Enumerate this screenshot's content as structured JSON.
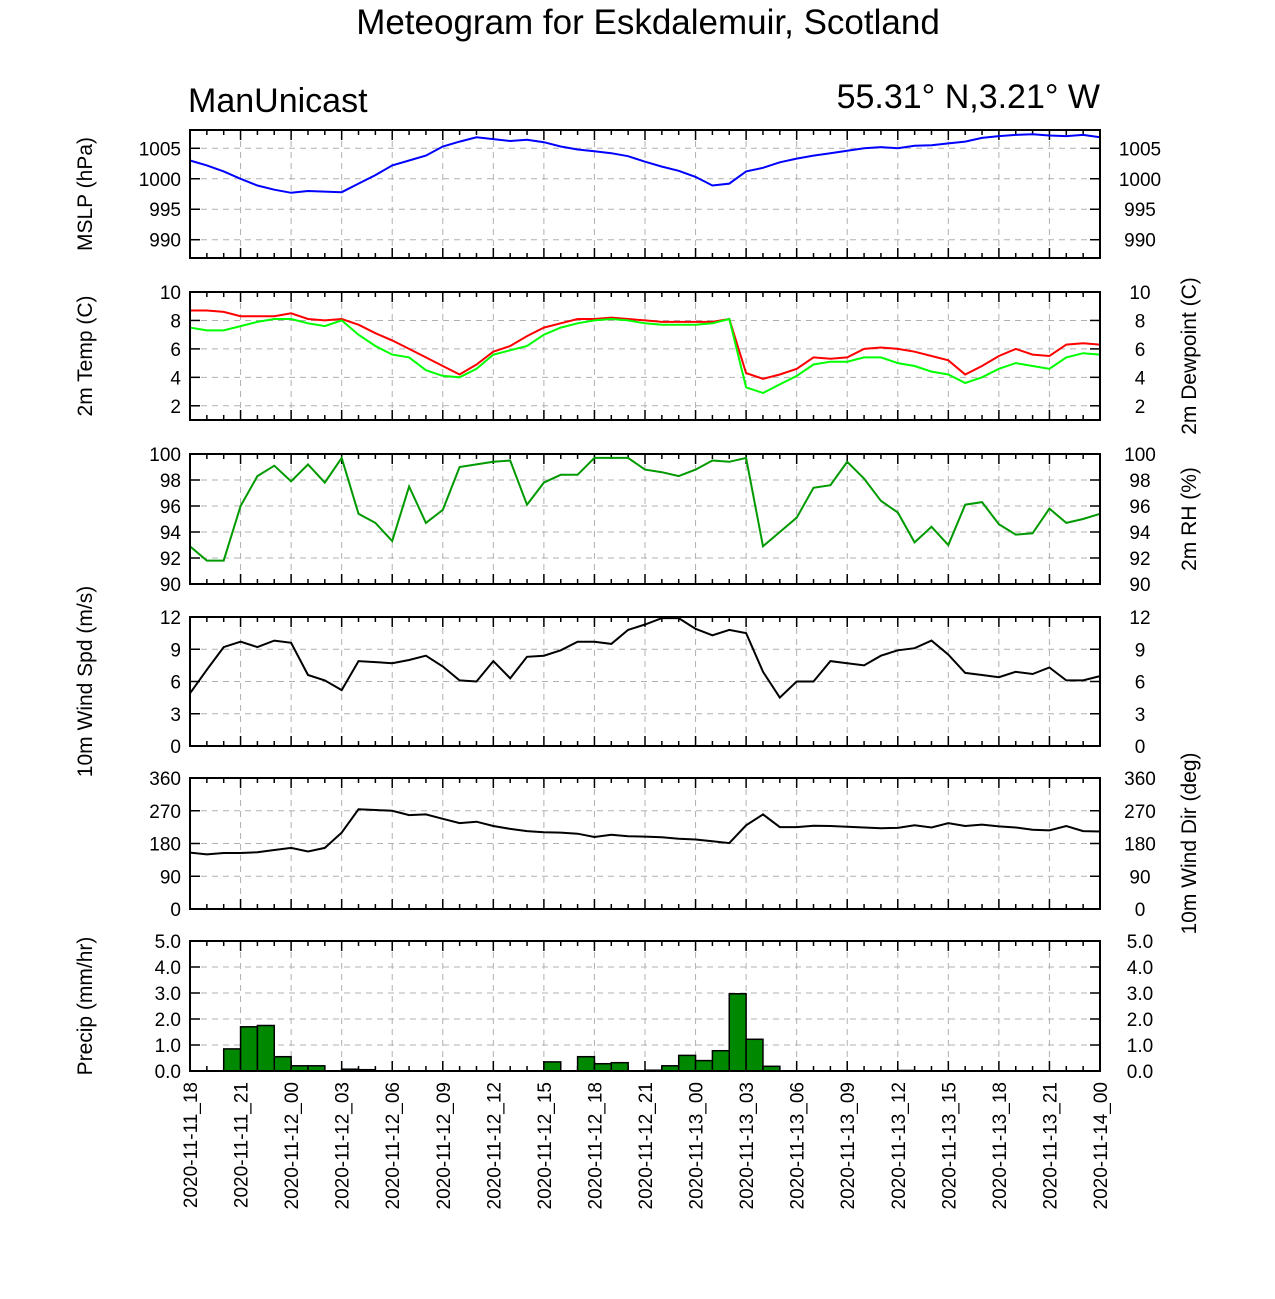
{
  "title": "Meteogram for Eskdalemuir, Scotland",
  "model": "ManUnicast",
  "location": "55.31° N,3.21° W",
  "x_labels": [
    "2020-11-11_18",
    "2020-11-11_21",
    "2020-11-12_00",
    "2020-11-12_03",
    "2020-11-12_06",
    "2020-11-12_09",
    "2020-11-12_12",
    "2020-11-12_15",
    "2020-11-12_18",
    "2020-11-12_21",
    "2020-11-13_00",
    "2020-11-13_03",
    "2020-11-13_06",
    "2020-11-13_09",
    "2020-11-13_12",
    "2020-11-13_15",
    "2020-11-13_18",
    "2020-11-13_21",
    "2020-11-14_00"
  ],
  "chart_data": [
    {
      "type": "line",
      "ylabel": "MSLP (hPa)",
      "ylim": [
        987,
        1008
      ],
      "yticks": [
        "990",
        "995",
        "1000",
        "1005"
      ],
      "ytick_values": [
        990,
        995,
        1000,
        1005
      ],
      "right_ticks": [
        "990",
        "995",
        "1000",
        "1005"
      ],
      "grid": true,
      "x_hours": [
        0,
        1,
        2,
        3,
        4,
        5,
        6,
        7,
        8,
        9,
        10,
        11,
        12,
        13,
        14,
        15,
        16,
        17,
        18,
        19,
        20,
        21,
        22,
        23,
        24,
        25,
        26,
        27,
        28,
        29,
        30,
        31,
        32,
        33,
        34,
        35,
        36,
        37,
        38,
        39,
        40,
        41,
        42,
        43,
        44,
        45,
        46,
        47,
        48,
        49,
        50,
        51,
        52,
        53,
        54
      ],
      "series": [
        {
          "color": "#0000ff",
          "values": [
            1003.0,
            1002.2,
            1001.2,
            1000.0,
            998.9,
            998.2,
            997.7,
            998.0,
            997.9,
            997.8,
            999.2,
            1000.6,
            1002.2,
            1003.0,
            1003.8,
            1005.3,
            1006.1,
            1006.8,
            1006.5,
            1006.2,
            1006.4,
            1006.0,
            1005.3,
            1004.8,
            1004.5,
            1004.2,
            1003.7,
            1002.8,
            1002.0,
            1001.3,
            1000.3,
            998.9,
            999.2,
            1001.2,
            1001.8,
            1002.7,
            1003.3,
            1003.8,
            1004.2,
            1004.6,
            1005.0,
            1005.2,
            1005.0,
            1005.4,
            1005.5,
            1005.8,
            1006.1,
            1006.7,
            1007.0,
            1007.2,
            1007.3,
            1007.1,
            1007.0,
            1007.2,
            1006.8
          ]
        }
      ]
    },
    {
      "type": "line",
      "ylabel": "2m Temp (C)",
      "ylabel_right": "2m Dewpoint (C)",
      "ylim": [
        1,
        10
      ],
      "yticks": [
        "2",
        "4",
        "6",
        "8",
        "10"
      ],
      "ytick_values": [
        2,
        4,
        6,
        8,
        10
      ],
      "right_ticks": [
        "2",
        "4",
        "6",
        "8",
        "10"
      ],
      "grid": true,
      "x_hours": [
        0,
        1,
        2,
        3,
        4,
        5,
        6,
        7,
        8,
        9,
        10,
        11,
        12,
        13,
        14,
        15,
        16,
        17,
        18,
        19,
        20,
        21,
        22,
        23,
        24,
        25,
        26,
        27,
        28,
        29,
        30,
        31,
        32,
        33,
        34,
        35,
        36,
        37,
        38,
        39,
        40,
        41,
        42,
        43,
        44,
        45,
        46,
        47,
        48,
        49,
        50,
        51,
        52,
        53,
        54
      ],
      "series": [
        {
          "color": "#ff0000",
          "values": [
            8.7,
            8.7,
            8.6,
            8.3,
            8.3,
            8.3,
            8.5,
            8.1,
            8.0,
            8.1,
            7.7,
            7.1,
            6.6,
            6.0,
            5.4,
            4.8,
            4.2,
            4.9,
            5.8,
            6.2,
            6.9,
            7.5,
            7.8,
            8.1,
            8.1,
            8.2,
            8.1,
            8.0,
            7.9,
            7.9,
            7.9,
            7.9,
            8.1,
            4.3,
            3.9,
            4.2,
            4.6,
            5.4,
            5.3,
            5.4,
            6.0,
            6.1,
            6.0,
            5.8,
            5.5,
            5.2,
            4.2,
            4.8,
            5.5,
            6.0,
            5.6,
            5.5,
            6.3,
            6.4,
            6.3
          ]
        },
        {
          "color": "#00ff00",
          "values": [
            7.5,
            7.3,
            7.3,
            7.6,
            7.9,
            8.1,
            8.1,
            7.8,
            7.6,
            8.0,
            7.0,
            6.2,
            5.6,
            5.4,
            4.5,
            4.1,
            4.0,
            4.6,
            5.6,
            5.9,
            6.2,
            7.0,
            7.5,
            7.8,
            8.0,
            8.1,
            8.0,
            7.8,
            7.7,
            7.7,
            7.7,
            7.8,
            8.1,
            3.3,
            2.9,
            3.5,
            4.1,
            4.9,
            5.1,
            5.1,
            5.4,
            5.4,
            5.0,
            4.8,
            4.4,
            4.2,
            3.6,
            4.0,
            4.6,
            5.0,
            4.8,
            4.6,
            5.4,
            5.7,
            5.6
          ]
        }
      ]
    },
    {
      "type": "line",
      "ylabel_right": "2m RH (%)",
      "ylim": [
        90,
        100
      ],
      "yticks": [
        "90",
        "92",
        "94",
        "96",
        "98",
        "100"
      ],
      "ytick_values": [
        90,
        92,
        94,
        96,
        98,
        100
      ],
      "right_ticks": [
        "90",
        "92",
        "94",
        "96",
        "98",
        "100"
      ],
      "grid": true,
      "x_hours": [
        0,
        1,
        2,
        3,
        4,
        5,
        6,
        7,
        8,
        9,
        10,
        11,
        12,
        13,
        14,
        15,
        16,
        17,
        18,
        19,
        20,
        21,
        22,
        23,
        24,
        25,
        26,
        27,
        28,
        29,
        30,
        31,
        32,
        33,
        34,
        35,
        36,
        37,
        38,
        39,
        40,
        41,
        42,
        43,
        44,
        45,
        46,
        47,
        48,
        49,
        50,
        51,
        52,
        53,
        54
      ],
      "series": [
        {
          "color": "#009a00",
          "values": [
            92.9,
            91.8,
            91.8,
            96.0,
            98.3,
            99.1,
            97.9,
            99.2,
            97.8,
            99.7,
            95.4,
            94.7,
            93.3,
            97.5,
            94.7,
            95.7,
            99.0,
            99.2,
            99.4,
            99.5,
            96.1,
            97.8,
            98.4,
            98.4,
            99.7,
            99.7,
            99.7,
            98.8,
            98.6,
            98.3,
            98.8,
            99.5,
            99.4,
            99.7,
            92.9,
            94.0,
            95.1,
            97.4,
            97.6,
            99.4,
            98.1,
            96.4,
            95.5,
            93.2,
            94.4,
            93.0,
            96.1,
            96.3,
            94.6,
            93.8,
            93.9,
            95.8,
            94.7,
            95.0,
            95.4
          ]
        }
      ]
    },
    {
      "type": "line",
      "ylabel": "10m Wind Spd (m/s)",
      "ylim": [
        0,
        12
      ],
      "yticks": [
        "0",
        "3",
        "6",
        "9",
        "12"
      ],
      "ytick_values": [
        0,
        3,
        6,
        9,
        12
      ],
      "right_ticks": [
        "0",
        "3",
        "6",
        "9",
        "12"
      ],
      "grid": true,
      "x_hours": [
        0,
        1,
        2,
        3,
        4,
        5,
        6,
        7,
        8,
        9,
        10,
        11,
        12,
        13,
        14,
        15,
        16,
        17,
        18,
        19,
        20,
        21,
        22,
        23,
        24,
        25,
        26,
        27,
        28,
        29,
        30,
        31,
        32,
        33,
        34,
        35,
        36,
        37,
        38,
        39,
        40,
        41,
        42,
        43,
        44,
        45,
        46,
        47,
        48,
        49,
        50,
        51,
        52,
        53,
        54
      ],
      "series": [
        {
          "color": "#000000",
          "values": [
            4.9,
            7.1,
            9.2,
            9.7,
            9.2,
            9.8,
            9.6,
            6.6,
            6.1,
            5.2,
            7.9,
            7.8,
            7.7,
            8.0,
            8.4,
            7.4,
            6.1,
            6.0,
            7.9,
            6.3,
            8.3,
            8.4,
            8.9,
            9.7,
            9.7,
            9.5,
            10.8,
            11.3,
            11.9,
            11.9,
            10.9,
            10.3,
            10.8,
            10.5,
            6.9,
            4.5,
            6.0,
            6.0,
            7.9,
            7.7,
            7.5,
            8.4,
            8.9,
            9.1,
            9.8,
            8.5,
            6.8,
            6.6,
            6.4,
            6.9,
            6.7,
            7.3,
            6.1,
            6.1,
            6.5
          ]
        }
      ]
    },
    {
      "type": "line",
      "ylabel_right": "10m Wind Dir (deg)",
      "ylim": [
        0,
        360
      ],
      "yticks": [
        "0",
        "90",
        "180",
        "270",
        "360"
      ],
      "ytick_values": [
        0,
        90,
        180,
        270,
        360
      ],
      "right_ticks": [
        "0",
        "90",
        "180",
        "270",
        "360"
      ],
      "grid": true,
      "x_hours": [
        0,
        1,
        2,
        3,
        4,
        5,
        6,
        7,
        8,
        9,
        10,
        11,
        12,
        13,
        14,
        15,
        16,
        17,
        18,
        19,
        20,
        21,
        22,
        23,
        24,
        25,
        26,
        27,
        28,
        29,
        30,
        31,
        32,
        33,
        34,
        35,
        36,
        37,
        38,
        39,
        40,
        41,
        42,
        43,
        44,
        45,
        46,
        47,
        48,
        49,
        50,
        51,
        52,
        53,
        54
      ],
      "series": [
        {
          "color": "#000000",
          "values": [
            155,
            150,
            154,
            154,
            156,
            162,
            168,
            158,
            168,
            210,
            274,
            272,
            270,
            258,
            260,
            248,
            236,
            240,
            228,
            220,
            214,
            211,
            210,
            207,
            198,
            204,
            200,
            199,
            197,
            193,
            191,
            186,
            181,
            230,
            260,
            225,
            225,
            229,
            228,
            226,
            224,
            222,
            223,
            230,
            224,
            236,
            228,
            232,
            227,
            224,
            218,
            216,
            228,
            214,
            213
          ]
        }
      ]
    },
    {
      "type": "bar",
      "ylabel": "Precip (mm/hr)",
      "ylim": [
        0,
        5
      ],
      "yticks": [
        "0.0",
        "1.0",
        "2.0",
        "3.0",
        "4.0",
        "5.0"
      ],
      "ytick_values": [
        0,
        1,
        2,
        3,
        4,
        5
      ],
      "right_ticks": [
        "0.0",
        "1.0",
        "2.0",
        "3.0",
        "4.0",
        "5.0"
      ],
      "grid": true,
      "x_hours": [
        1,
        2,
        3,
        4,
        5,
        6,
        7,
        8,
        9,
        10,
        11,
        12,
        13,
        14,
        15,
        16,
        17,
        18,
        19,
        20,
        21,
        22,
        23,
        24,
        25,
        26,
        27,
        28,
        29,
        30,
        31,
        32,
        33,
        34,
        35,
        36,
        37,
        38,
        39,
        40,
        41,
        42,
        43,
        44,
        45,
        46,
        47,
        48,
        49,
        50,
        51,
        52,
        53,
        54
      ],
      "series": [
        {
          "color": "#008800",
          "values": [
            0,
            0,
            0.85,
            1.7,
            1.75,
            0.55,
            0.2,
            0.2,
            0,
            0.07,
            0.05,
            0,
            0,
            0,
            0,
            0,
            0,
            0,
            0,
            0,
            0,
            0.35,
            0,
            0.55,
            0.28,
            0.32,
            0,
            0.03,
            0.2,
            0.6,
            0.4,
            0.78,
            2.97,
            1.22,
            0.18,
            0,
            0,
            0,
            0,
            0,
            0,
            0,
            0.02,
            0,
            0,
            0,
            0,
            0,
            0,
            0,
            0,
            0,
            0,
            0
          ]
        }
      ]
    }
  ]
}
